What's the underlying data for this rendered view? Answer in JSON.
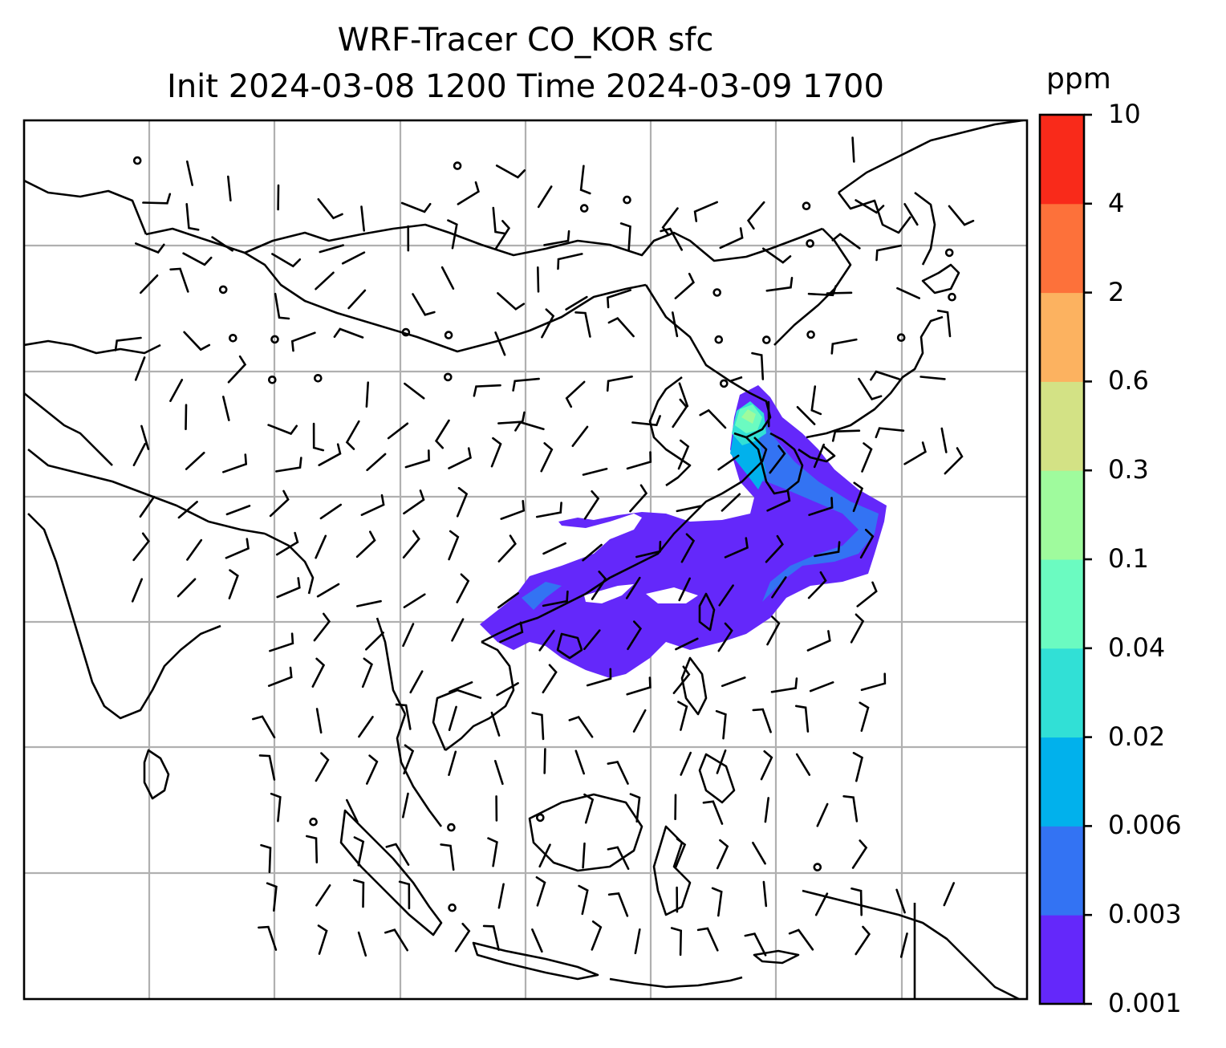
{
  "title": {
    "line1": "WRF-Tracer CO_KOR sfc",
    "line2": "Init 2024-03-08 1200 Time 2024-03-09 1700"
  },
  "colorbar": {
    "unit": "ppm",
    "levels": [
      "0.001",
      "0.003",
      "0.006",
      "0.02",
      "0.04",
      "0.1",
      "0.3",
      "0.6",
      "2",
      "4",
      "10"
    ],
    "colors": [
      "#6428fa",
      "#3373f3",
      "#01b1ec",
      "#31e0d6",
      "#6bfbc1",
      "#9ffb9d",
      "#d3e285",
      "#fcb260",
      "#fd713a",
      "#f92a1a"
    ]
  },
  "map": {
    "gridlines": true,
    "coastline_color": "#000000",
    "grid_color": "#b0b0b0",
    "wind_barb_color": "#000000"
  }
}
